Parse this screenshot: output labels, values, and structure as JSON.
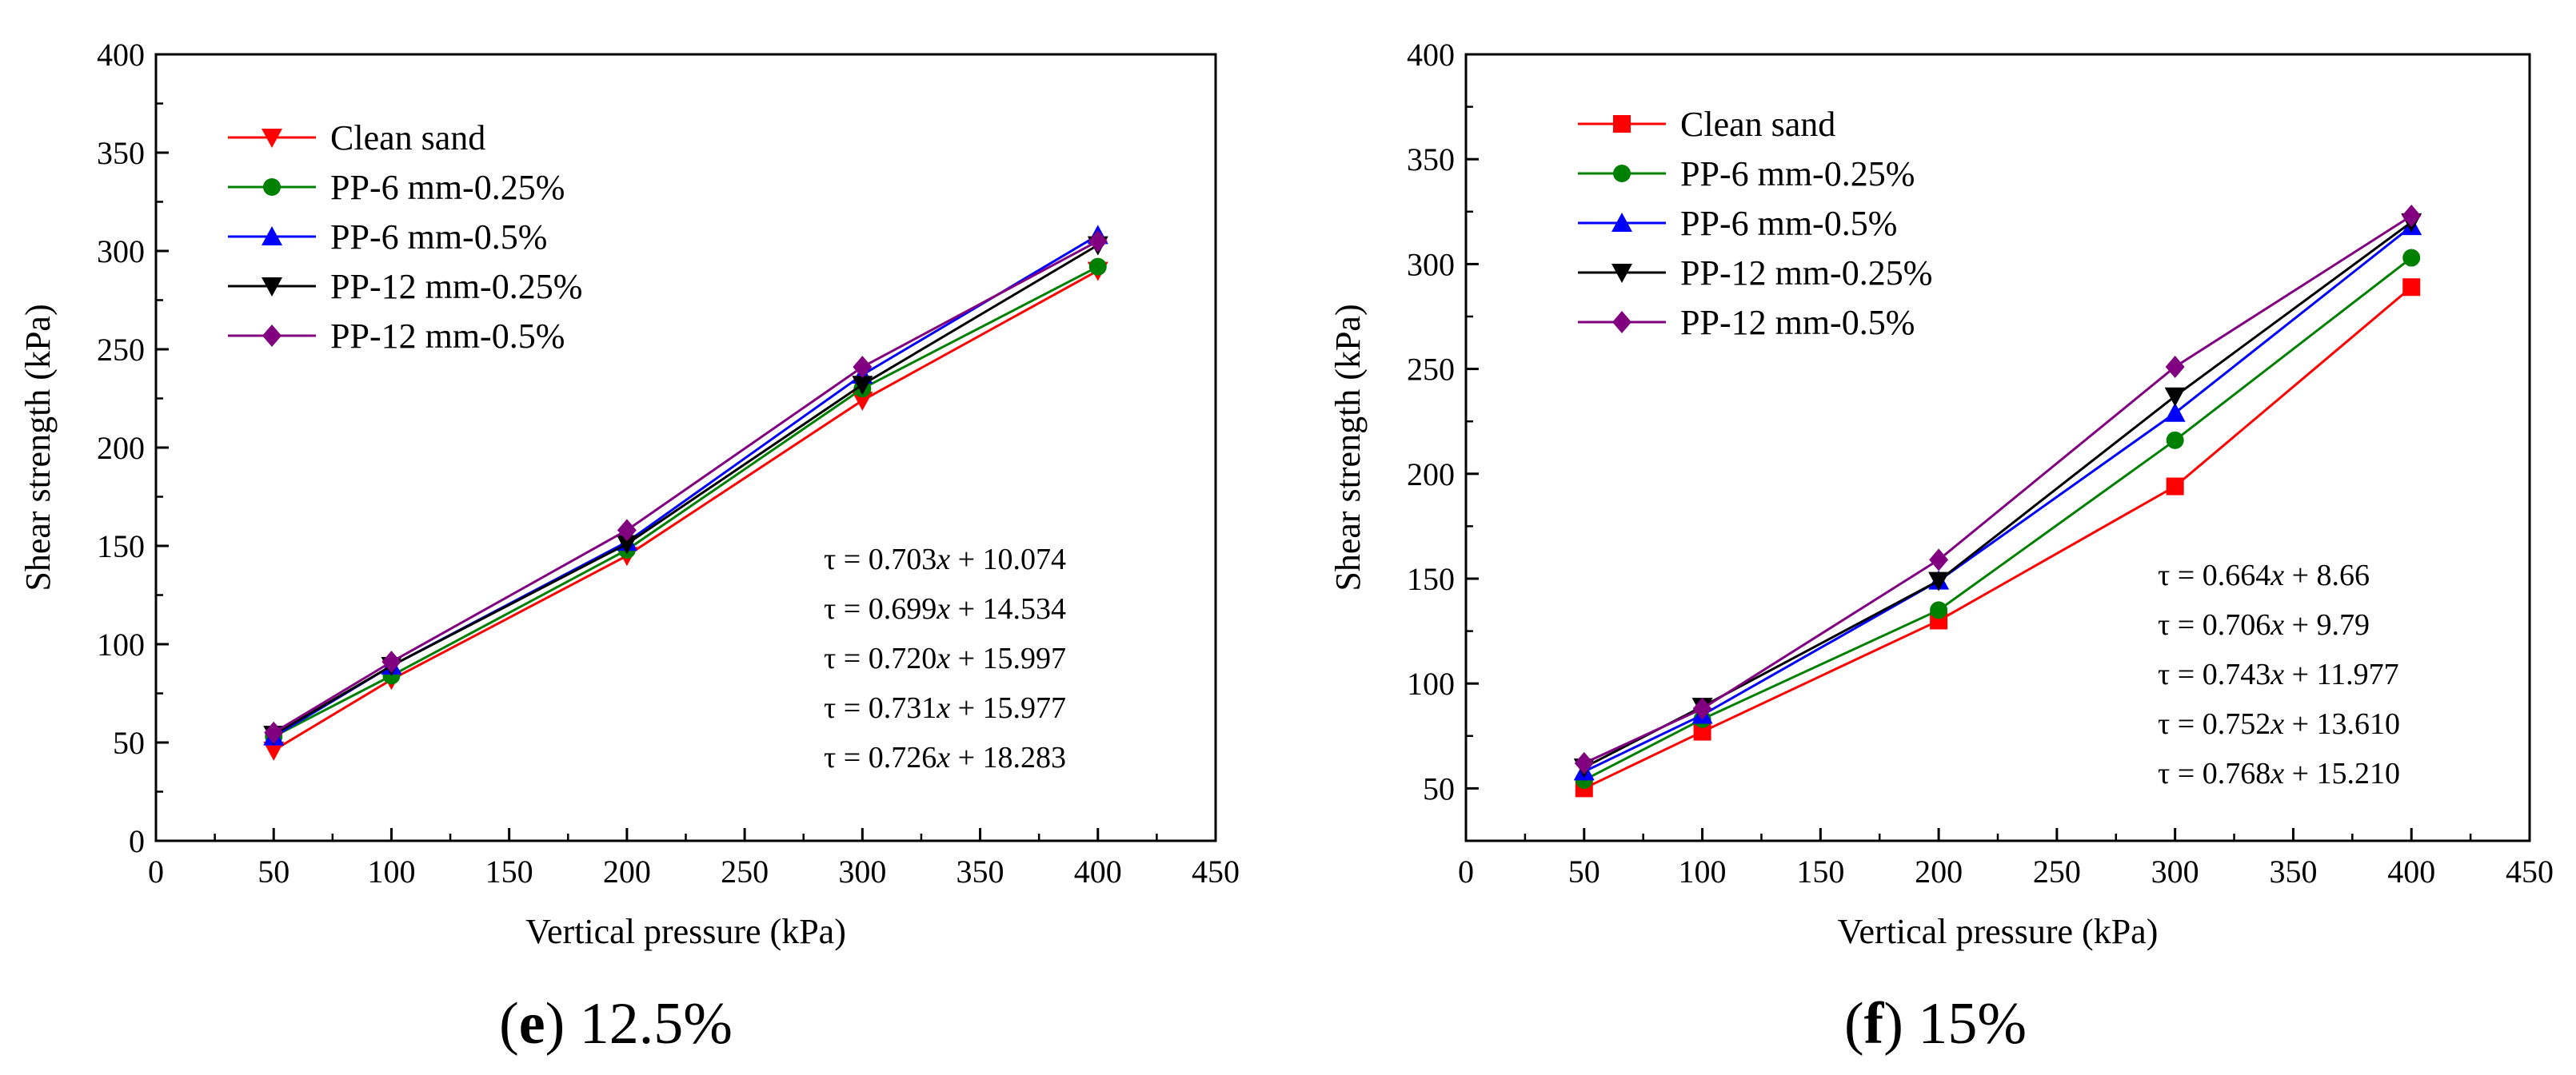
{
  "chart_data": [
    {
      "type": "line",
      "caption_letter": "e",
      "caption_text": " 12.5%",
      "xlabel": "Vertical pressure (kPa)",
      "ylabel": "Shear strength (kPa)",
      "xlim": [
        0,
        450
      ],
      "ylim": [
        0,
        400
      ],
      "xticks": [
        "0",
        "50",
        "100",
        "150",
        "200",
        "250",
        "300",
        "350",
        "400",
        "450"
      ],
      "yticks": [
        "0",
        "50",
        "100",
        "150",
        "200",
        "250",
        "300",
        "350",
        "400"
      ],
      "legend_position": "top-left",
      "x": [
        50,
        100,
        200,
        300,
        400
      ],
      "series": [
        {
          "name": "Clean sand",
          "color": "#ff0000",
          "marker": "triangle-down",
          "values": [
            46,
            82,
            145,
            224,
            290
          ]
        },
        {
          "name": "PP-6 mm-0.25%",
          "color": "#008000",
          "marker": "circle",
          "values": [
            53,
            84,
            148,
            230,
            292
          ]
        },
        {
          "name": "PP-6 mm-0.5%",
          "color": "#0000ff",
          "marker": "triangle-up",
          "values": [
            53,
            89,
            152,
            237,
            308
          ]
        },
        {
          "name": "PP-12 mm-0.25%",
          "color": "#000000",
          "marker": "triangle-down",
          "values": [
            54,
            89,
            151,
            232,
            303
          ]
        },
        {
          "name": "PP-12 mm-0.5%",
          "color": "#800080",
          "marker": "diamond",
          "values": [
            55,
            91,
            158,
            241,
            305
          ]
        }
      ],
      "annotations": [
        {
          "prefix": "τ = 0.703",
          "var": "x",
          "suffix": " + 10.074"
        },
        {
          "prefix": "τ = 0.699",
          "var": "x",
          "suffix": " + 14.534"
        },
        {
          "prefix": "τ = 0.720",
          "var": "x",
          "suffix": " + 15.997"
        },
        {
          "prefix": "τ = 0.731",
          "var": "x",
          "suffix": " + 15.977"
        },
        {
          "prefix": "τ = 0.726",
          "var": "x",
          "suffix": " + 18.283"
        }
      ]
    },
    {
      "type": "line",
      "caption_letter": "f",
      "caption_text": " 15%",
      "xlabel": "Vertical pressure (kPa)",
      "ylabel": "Shear strength (kPa)",
      "xlim": [
        0,
        450
      ],
      "ylim": [
        25,
        400
      ],
      "xticks": [
        "0",
        "50",
        "100",
        "150",
        "200",
        "250",
        "300",
        "350",
        "400",
        "450"
      ],
      "yticks": [
        "50",
        "100",
        "150",
        "200",
        "250",
        "300",
        "350",
        "400"
      ],
      "legend_position": "top-left",
      "x": [
        50,
        100,
        200,
        300,
        400
      ],
      "series": [
        {
          "name": "Clean sand",
          "color": "#ff0000",
          "marker": "square",
          "values": [
            50,
            77,
            130,
            194,
            289
          ]
        },
        {
          "name": "PP-6 mm-0.25%",
          "color": "#008000",
          "marker": "circle",
          "values": [
            54,
            83,
            135,
            216,
            303
          ]
        },
        {
          "name": "PP-6 mm-0.5%",
          "color": "#0000ff",
          "marker": "triangle-up",
          "values": [
            58,
            85,
            149,
            229,
            318
          ]
        },
        {
          "name": "PP-12 mm-0.25%",
          "color": "#000000",
          "marker": "triangle-down",
          "values": [
            60,
            89,
            149,
            237,
            320
          ]
        },
        {
          "name": "PP-12 mm-0.5%",
          "color": "#800080",
          "marker": "diamond",
          "values": [
            62,
            88,
            159,
            251,
            323
          ]
        }
      ],
      "annotations": [
        {
          "prefix": "τ = 0.664",
          "var": "x",
          "suffix": " + 8.66"
        },
        {
          "prefix": "τ = 0.706",
          "var": "x",
          "suffix": " + 9.79"
        },
        {
          "prefix": "τ = 0.743",
          "var": "x",
          "suffix": " + 11.977"
        },
        {
          "prefix": "τ = 0.752",
          "var": "x",
          "suffix": " + 13.610"
        },
        {
          "prefix": "τ = 0.768",
          "var": "x",
          "suffix": " + 15.210"
        }
      ]
    }
  ]
}
